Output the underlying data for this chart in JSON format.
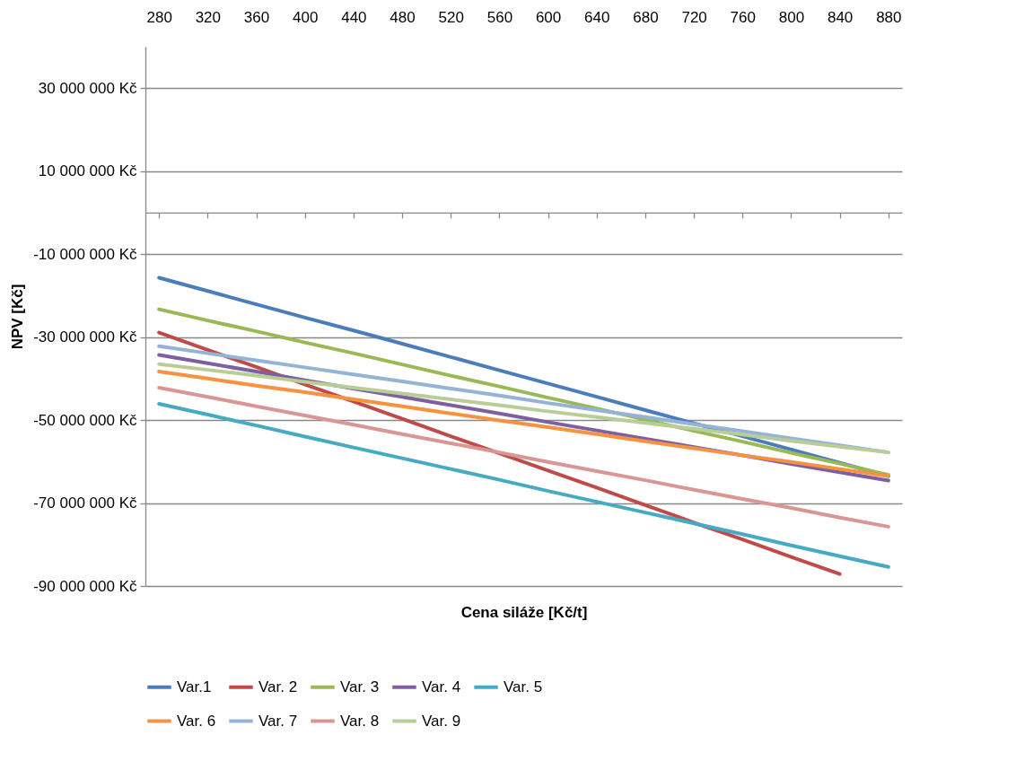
{
  "chart_data": {
    "type": "line",
    "xlabel": "Cena  siláže [Kč/t]",
    "ylabel": "NPV [Kč]",
    "categories": [
      "280",
      "320",
      "360",
      "400",
      "440",
      "480",
      "520",
      "560",
      "600",
      "640",
      "680",
      "720",
      "760",
      "800",
      "840",
      "880"
    ],
    "ylim": [
      -90000000,
      40000000
    ],
    "yticks": [
      {
        "value": -90000000,
        "label": "-90 000 000 Kč"
      },
      {
        "value": -70000000,
        "label": "-70 000 000 Kč"
      },
      {
        "value": -50000000,
        "label": "-50 000 000 Kč"
      },
      {
        "value": -30000000,
        "label": "-30 000 000 Kč"
      },
      {
        "value": -10000000,
        "label": "-10 000 000 Kč"
      },
      {
        "value": 10000000,
        "label": "10 000 000 Kč"
      },
      {
        "value": 30000000,
        "label": "30 000 000 Kč"
      }
    ],
    "grid": "y",
    "legend": "bottom",
    "series": [
      {
        "name": "Var.1",
        "color": "#4a7ebb",
        "values": [
          -15700000,
          -18900000,
          -22100000,
          -25300000,
          -28400000,
          -31600000,
          -34800000,
          -38000000,
          -41200000,
          -44400000,
          -47600000,
          -50800000,
          -53900000,
          -57100000,
          -60300000,
          -63500000
        ]
      },
      {
        "name": "Var. 2",
        "color": "#be4b48",
        "values": [
          -28900000,
          -33100000,
          -37200000,
          -41400000,
          -45500000,
          -49700000,
          -53900000,
          -58000000,
          -62200000,
          -66300000,
          -70500000,
          -74700000,
          -78800000,
          -83000000,
          -87100000,
          null
        ]
      },
      {
        "name": "Var. 3",
        "color": "#98b954",
        "values": [
          -23300000,
          -26000000,
          -28600000,
          -31300000,
          -33900000,
          -36600000,
          -39300000,
          -41900000,
          -44600000,
          -47200000,
          -49900000,
          -52600000,
          -55200000,
          -57900000,
          -60500000,
          -63200000
        ]
      },
      {
        "name": "Var. 4",
        "color": "#7d60a0",
        "values": [
          -34300000,
          -36300000,
          -38300000,
          -40400000,
          -42400000,
          -44400000,
          -46400000,
          -48400000,
          -50500000,
          -52500000,
          -54500000,
          -56500000,
          -58500000,
          -60600000,
          -62600000,
          -64600000
        ]
      },
      {
        "name": "Var. 5",
        "color": "#46aac5",
        "values": [
          -46100000,
          -48700000,
          -51300000,
          -54000000,
          -56600000,
          -59200000,
          -61800000,
          -64400000,
          -67100000,
          -69700000,
          -72300000,
          -74900000,
          -77500000,
          -80200000,
          -82800000,
          -85400000
        ]
      },
      {
        "name": "Var. 6",
        "color": "#f69240",
        "values": [
          -38300000,
          -40000000,
          -41700000,
          -43300000,
          -45000000,
          -46700000,
          -48400000,
          -50100000,
          -51700000,
          -53400000,
          -55100000,
          -56800000,
          -58500000,
          -60100000,
          -61800000,
          -63500000
        ]
      },
      {
        "name": "Var. 7",
        "color": "#95b3d7",
        "values": [
          -32200000,
          -33900000,
          -35600000,
          -37300000,
          -39000000,
          -40700000,
          -42400000,
          -44100000,
          -45900000,
          -47600000,
          -49300000,
          -51000000,
          -52700000,
          -54400000,
          -56100000,
          -57800000
        ]
      },
      {
        "name": "Var. 8",
        "color": "#d99694",
        "values": [
          -42200000,
          -44400000,
          -46700000,
          -48900000,
          -51100000,
          -53400000,
          -55600000,
          -57800000,
          -60100000,
          -62300000,
          -64500000,
          -66800000,
          -69000000,
          -71200000,
          -73500000,
          -75700000
        ]
      },
      {
        "name": "Var. 9",
        "color": "#b9cd96",
        "values": [
          -36500000,
          -37900000,
          -39300000,
          -40800000,
          -42200000,
          -43600000,
          -45000000,
          -46400000,
          -47900000,
          -49300000,
          -50700000,
          -52100000,
          -53500000,
          -55000000,
          -56400000,
          -57800000
        ]
      }
    ]
  }
}
